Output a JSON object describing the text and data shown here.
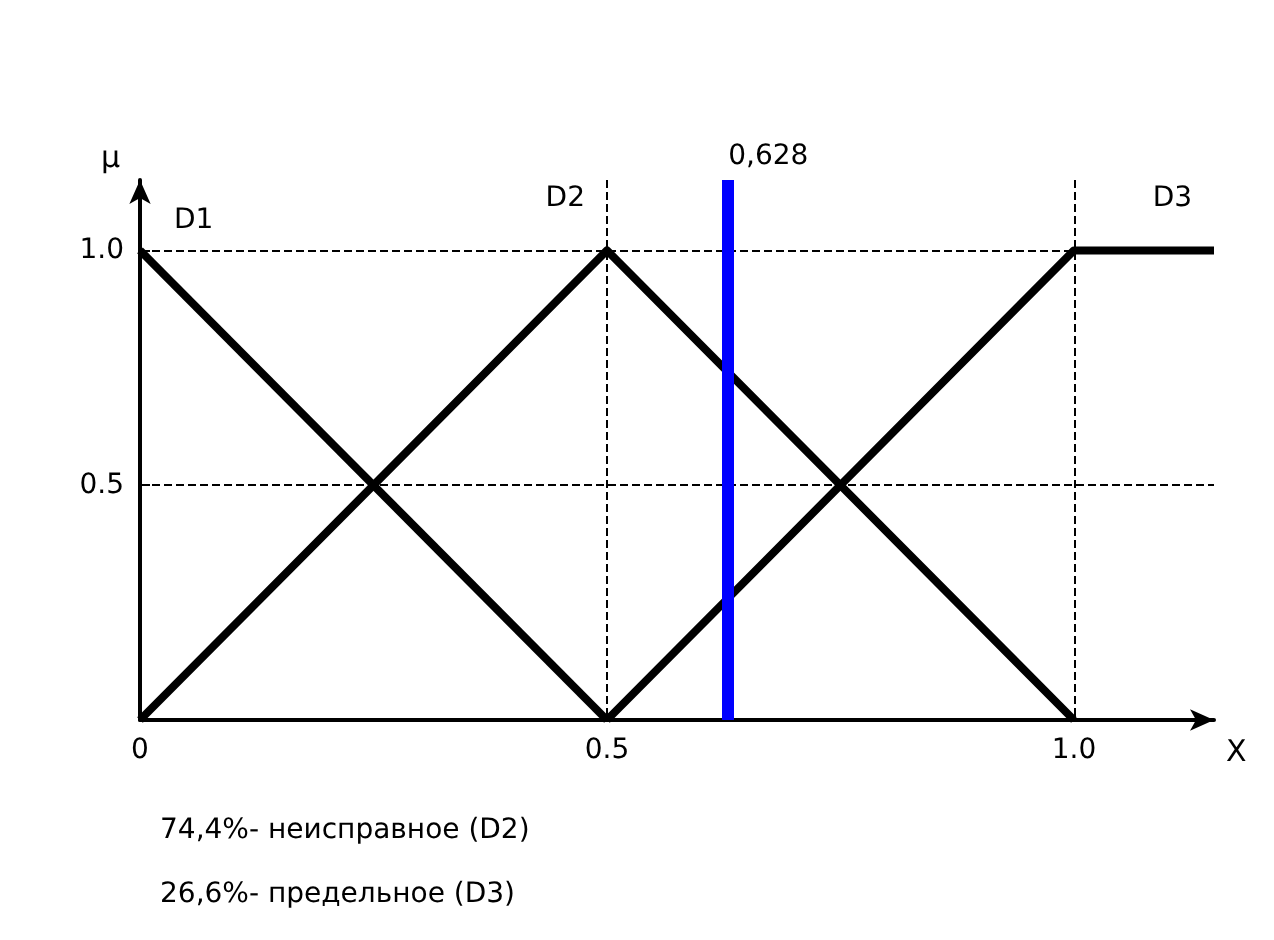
{
  "chart_data": {
    "type": "line",
    "xlabel": "X",
    "ylabel": "μ",
    "xlim": [
      0,
      1.15
    ],
    "ylim": [
      0,
      1.15
    ],
    "xticks": [
      0,
      0.5,
      {
        "value": 1,
        "label": "1.0"
      }
    ],
    "yticks": [
      0.5,
      {
        "value": 1,
        "label": "1.0"
      }
    ],
    "grid": true,
    "legend": false,
    "marker": "none",
    "line_style": "solid",
    "series": [
      {
        "name": "D1",
        "color": "#000000",
        "x": [
          0,
          0.5
        ],
        "values": [
          1,
          0
        ]
      },
      {
        "name": "D2",
        "color": "#000000",
        "x": [
          0,
          0.5,
          1
        ],
        "values": [
          0,
          1,
          0
        ]
      },
      {
        "name": "D3",
        "color": "#000000",
        "x": [
          0.5,
          1,
          1.15
        ],
        "values": [
          0,
          1,
          1
        ]
      }
    ],
    "ref_lines": [
      {
        "axis": "x",
        "value": 0.628,
        "label": "0,628",
        "color": "#0000ff"
      }
    ],
    "annotations": [
      "74,4%- неисправное (D2)",
      "26,6%- предельное (D3)"
    ]
  }
}
